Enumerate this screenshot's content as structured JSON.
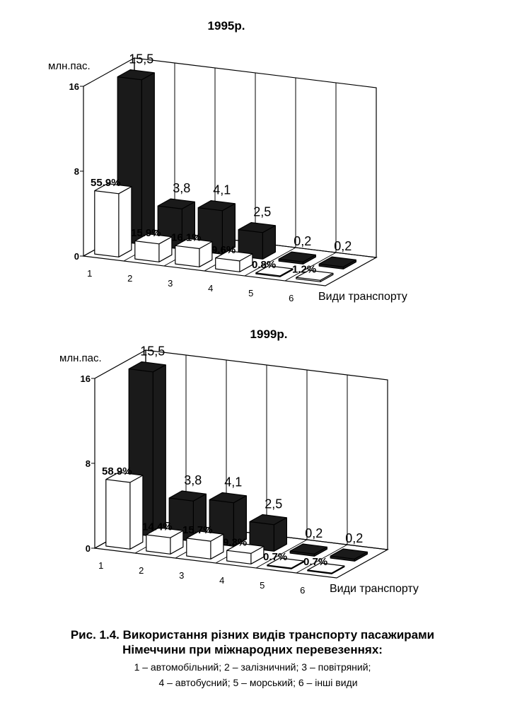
{
  "chart_data": [
    {
      "type": "bar3d",
      "title": "1995р.",
      "ylabel": "млн.пас.",
      "xlabel": "Види транспорту",
      "categories": [
        "1",
        "2",
        "3",
        "4",
        "5",
        "6"
      ],
      "ylim": [
        0,
        16
      ],
      "yticks": [
        0,
        8,
        16
      ],
      "y2lim": [
        0,
        150
      ],
      "series": [
        {
          "color": "#1a1a1a",
          "values": [
            15.5,
            3.8,
            4.1,
            2.5,
            0.2,
            0.2
          ],
          "value_labels": [
            "15,5",
            "3,8",
            "4,1",
            "2,5",
            "0,2",
            "0,2"
          ]
        },
        {
          "color": "#ffffff",
          "axis": "y2",
          "values": [
            55.9,
            15.9,
            16.1,
            9.6,
            0.8,
            1.2
          ],
          "value_labels": [
            "55.9%",
            "15.9%",
            "16.1%",
            "9.6%",
            "0.8%",
            "1.2%"
          ]
        }
      ]
    },
    {
      "type": "bar3d",
      "title": "1999р.",
      "ylabel": "млн.пас.",
      "xlabel": "Види  транспорту",
      "categories": [
        "1",
        "2",
        "3",
        "4",
        "5",
        "6"
      ],
      "ylim": [
        0,
        16
      ],
      "yticks": [
        0,
        8,
        16
      ],
      "y2lim": [
        0,
        150
      ],
      "series": [
        {
          "color": "#1a1a1a",
          "values": [
            15.5,
            3.8,
            4.1,
            2.5,
            0.2,
            0.2
          ],
          "value_labels": [
            "15,5",
            "3,8",
            "4,1",
            "2,5",
            "0,2",
            "0,2"
          ]
        },
        {
          "color": "#ffffff",
          "axis": "y2",
          "values": [
            58.9,
            14.4,
            15.7,
            9.3,
            0.7,
            0.7
          ],
          "value_labels": [
            "58.9%",
            "14.4%",
            "15.7%",
            "9.3%",
            "0.7%",
            "0.7%"
          ]
        }
      ]
    }
  ],
  "caption": {
    "title": [
      "Рис. 1.4. Використання різних видів транспорту пасажирами",
      "Німеччини при міжнародних перевезеннях:"
    ],
    "legend": [
      "1 – автомобільний;  2 – залізничний;  3 – повітряний;",
      "4 – автобусний;  5 – морський;  6 – інші види"
    ]
  }
}
